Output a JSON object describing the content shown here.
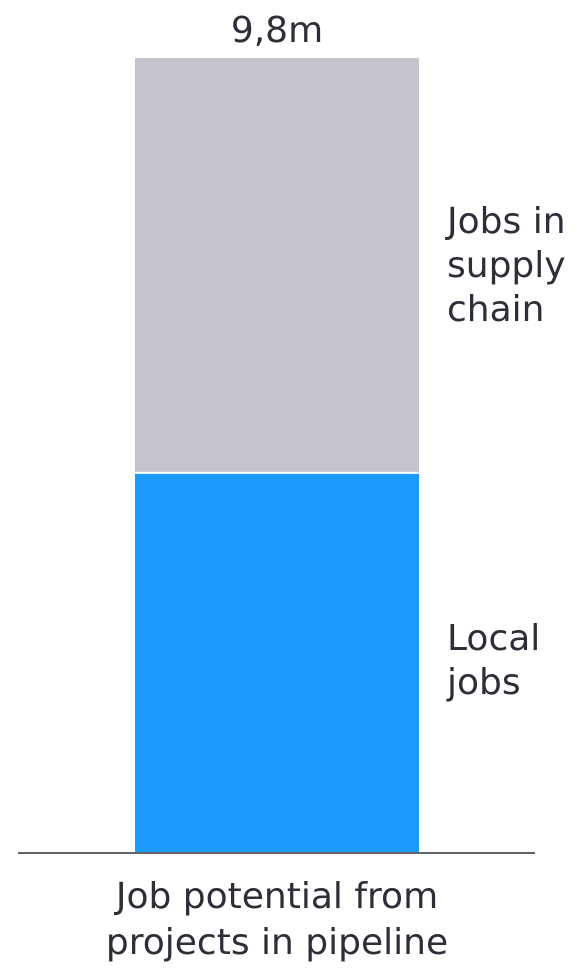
{
  "chart_data": {
    "type": "bar",
    "stacked": true,
    "categories": [
      "Job potential from projects in pipeline"
    ],
    "category_label_lines": [
      "Job potential from",
      "projects in pipeline"
    ],
    "total_label": "9,8m",
    "series": [
      {
        "name": "Local jobs",
        "label_lines": [
          "Local",
          "jobs"
        ],
        "color": "#1a9afa",
        "values": [
          4.68
        ]
      },
      {
        "name": "Jobs in supply chain",
        "label_lines": [
          "Jobs in",
          "supply",
          "chain"
        ],
        "color": "#c4c4cd",
        "values": [
          5.12
        ]
      }
    ],
    "total": 9.8,
    "ylim": [
      0,
      9.8
    ],
    "grid": false,
    "axis_line_color": "#2e2e38",
    "text_color": "#2e2e38"
  }
}
